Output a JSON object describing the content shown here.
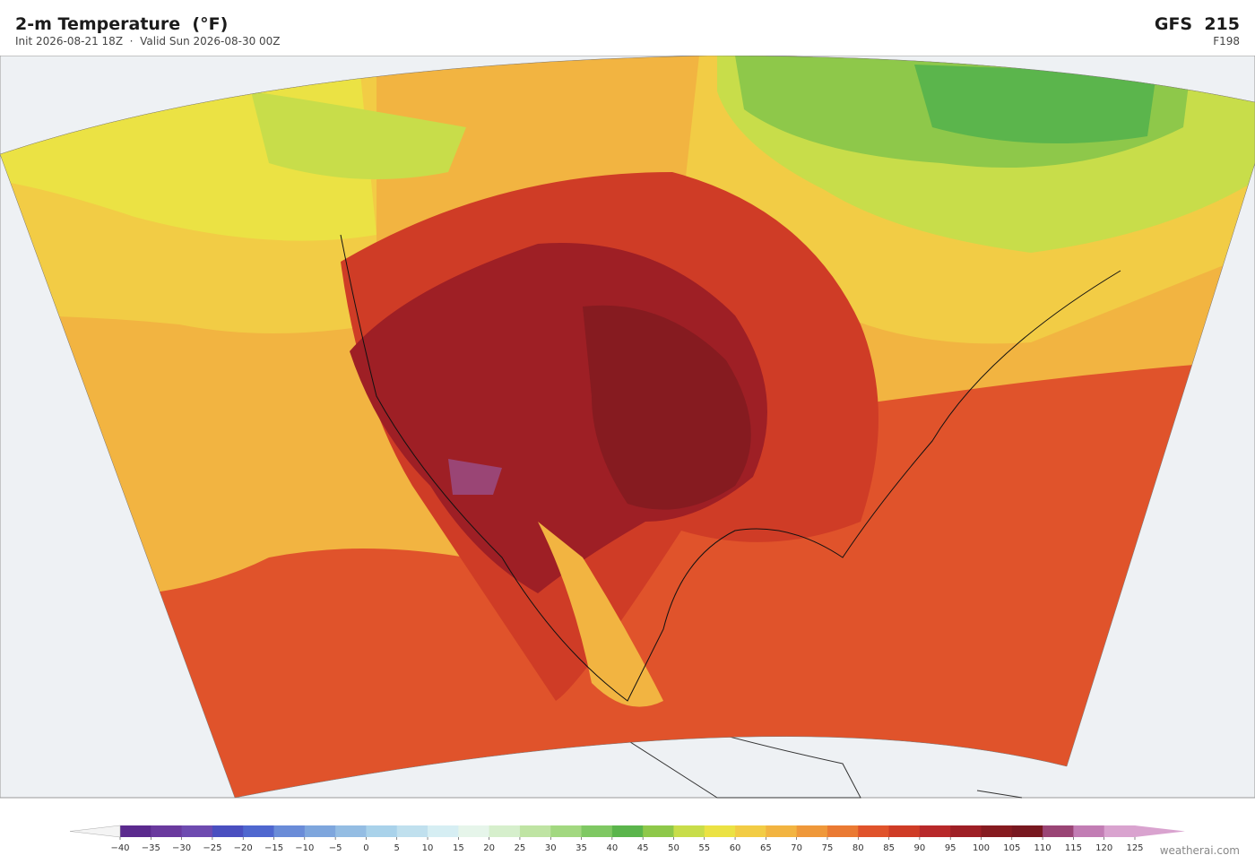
{
  "header": {
    "title": "2-m Temperature  (°F)",
    "subtitle": "Init 2026-08-21 18Z  ·  Valid Sun 2026-08-30 00Z",
    "model": "GFS  215",
    "forecast_hour": "F198"
  },
  "colorbar": {
    "ticks": [
      {
        "value": -40,
        "label": "−40"
      },
      {
        "value": -35,
        "label": "−35"
      },
      {
        "value": -30,
        "label": "−30"
      },
      {
        "value": -25,
        "label": "−25"
      },
      {
        "value": -20,
        "label": "−20"
      },
      {
        "value": -15,
        "label": "−15"
      },
      {
        "value": -10,
        "label": "−10"
      },
      {
        "value": -5,
        "label": "−5"
      },
      0,
      5,
      10,
      15,
      20,
      25,
      30,
      35,
      40,
      45,
      50,
      55,
      60,
      65,
      70,
      75,
      80,
      85,
      90,
      95,
      100,
      105,
      110,
      115,
      120,
      125
    ],
    "colors": [
      "#5b2a8e",
      "#6a3a9e",
      "#6e4bb0",
      "#4a4fc0",
      "#4f67cf",
      "#6a8cd8",
      "#7ea6dd",
      "#94bde3",
      "#a9d2ea",
      "#c0e0ee",
      "#d6eef3",
      "#e6f5ea",
      "#d6efcc",
      "#bfe4a3",
      "#a2d880",
      "#7fc863",
      "#5bb54c",
      "#8ec84a",
      "#c8dd4a",
      "#ebe244",
      "#f2cc45",
      "#f2b441",
      "#ef983a",
      "#ea7a33",
      "#e0532b",
      "#cf3c26",
      "#b8292a",
      "#9e1f25",
      "#861b20",
      "#781820",
      "#9a4575",
      "#c27db4",
      "#d9a3cf"
    ],
    "extend_colors": [
      "#f4f4f4",
      "#d9a3cf"
    ]
  },
  "footer": {
    "watermark": "weatherai.com"
  }
}
